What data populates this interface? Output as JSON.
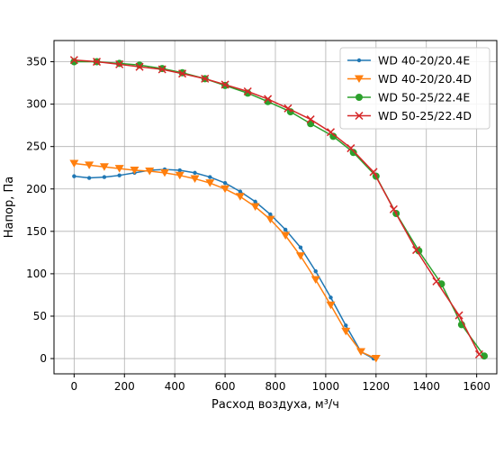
{
  "chart_data": {
    "type": "line",
    "xlabel": "Расход воздуха, м³/ч",
    "ylabel": "Напор, Па",
    "xlim": [
      -80,
      1680
    ],
    "ylim": [
      -18,
      375
    ],
    "xticks": [
      0,
      200,
      400,
      600,
      800,
      1000,
      1200,
      1400,
      1600
    ],
    "yticks": [
      0,
      50,
      100,
      150,
      200,
      250,
      300,
      350
    ],
    "grid": true,
    "legend_position": "top-right",
    "series": [
      {
        "name": "WD 40-20/20.4E",
        "color": "#1f77b4",
        "marker": "dot",
        "x": [
          0,
          60,
          120,
          180,
          240,
          300,
          360,
          420,
          480,
          540,
          600,
          660,
          720,
          780,
          840,
          900,
          960,
          1020,
          1080,
          1140,
          1190
        ],
        "y": [
          215,
          213,
          214,
          216,
          219,
          222,
          223,
          222,
          219,
          214,
          207,
          197,
          185,
          170,
          152,
          131,
          103,
          72,
          39,
          8,
          0
        ]
      },
      {
        "name": "WD 40-20/20.4D",
        "color": "#ff7f0e",
        "marker": "triangle-down",
        "x": [
          0,
          60,
          120,
          180,
          240,
          300,
          360,
          420,
          480,
          540,
          600,
          660,
          720,
          780,
          840,
          900,
          960,
          1020,
          1080,
          1140,
          1200
        ],
        "y": [
          230,
          228,
          226,
          224,
          222,
          221,
          219,
          216,
          212,
          207,
          200,
          191,
          179,
          164,
          145,
          121,
          93,
          63,
          32,
          8,
          0
        ]
      },
      {
        "name": "WD 50-25/22.4E",
        "color": "#2ca02c",
        "marker": "circle",
        "x": [
          0,
          90,
          180,
          260,
          350,
          430,
          520,
          600,
          690,
          770,
          860,
          940,
          1030,
          1110,
          1200,
          1280,
          1370,
          1460,
          1540,
          1630
        ],
        "y": [
          350,
          350,
          348,
          346,
          342,
          337,
          330,
          322,
          313,
          303,
          291,
          277,
          262,
          243,
          215,
          171,
          127,
          88,
          40,
          3
        ]
      },
      {
        "name": "WD 50-25/22.4D",
        "color": "#d62728",
        "marker": "x",
        "x": [
          0,
          90,
          180,
          260,
          350,
          430,
          520,
          600,
          690,
          770,
          850,
          940,
          1020,
          1100,
          1190,
          1270,
          1360,
          1440,
          1530,
          1610
        ],
        "y": [
          352,
          350,
          347,
          344,
          341,
          336,
          330,
          323,
          315,
          306,
          295,
          282,
          267,
          248,
          220,
          176,
          128,
          91,
          51,
          5
        ]
      }
    ]
  }
}
